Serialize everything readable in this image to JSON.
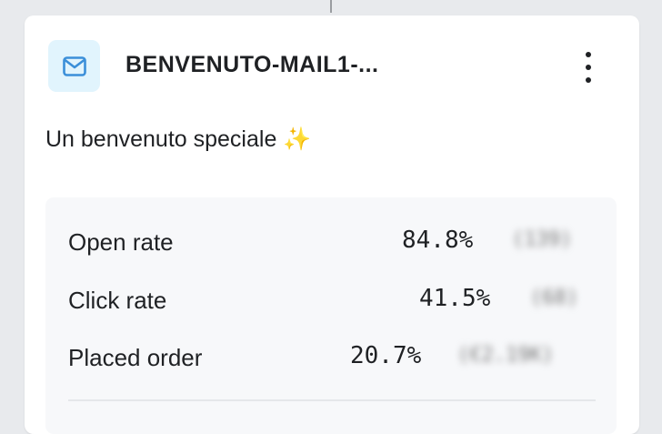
{
  "card": {
    "icon": "mail-icon",
    "title": "BENVENUTO-MAIL1-...",
    "subtitle": "Un benvenuto speciale ✨",
    "menu_icon": "kebab-menu-icon",
    "colors": {
      "icon_bg": "#e1f4fd",
      "icon": "#3b8fd9"
    }
  },
  "stats": [
    {
      "label": "Open rate",
      "value": "84.8%",
      "count": "(139)"
    },
    {
      "label": "Click rate",
      "value": "41.5%",
      "count": "(68)"
    },
    {
      "label": "Placed order",
      "value": "20.7%",
      "count": "(€2.19K)"
    }
  ]
}
